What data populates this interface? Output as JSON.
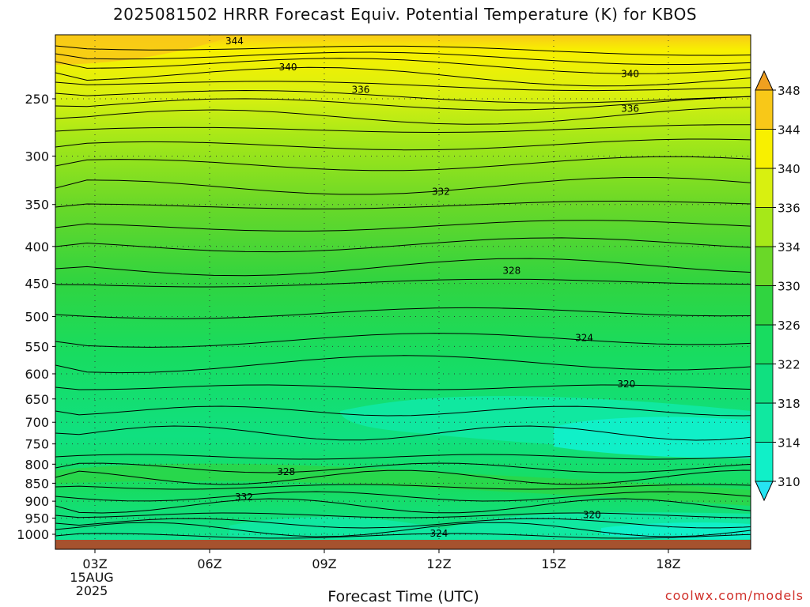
{
  "title": "2025081502 HRRR Forecast Equiv. Potential Temperature (K) for KBOS",
  "xlabel": "Forecast Time (UTC)",
  "credit": "coolwx.com/models",
  "chart_data": {
    "type": "heatmap",
    "title": "2025081502 HRRR Forecast Equiv. Potential Temperature (K) for KBOS",
    "xlabel": "Forecast Time (UTC)",
    "ylabel": "",
    "x_ticks": [
      {
        "label": "03Z",
        "sub": [
          "15AUG",
          "2025"
        ],
        "hour": 3
      },
      {
        "label": "06Z",
        "hour": 6
      },
      {
        "label": "09Z",
        "hour": 9
      },
      {
        "label": "12Z",
        "hour": 12
      },
      {
        "label": "15Z",
        "hour": 15
      },
      {
        "label": "18Z",
        "hour": 18
      }
    ],
    "x_range_hours": [
      2,
      20
    ],
    "y_ticks": [
      250,
      300,
      350,
      400,
      450,
      500,
      550,
      600,
      650,
      700,
      750,
      800,
      850,
      900,
      950,
      1000
    ],
    "y_range_hPa": [
      200,
      1013
    ],
    "y_scale": "log",
    "grid": true,
    "colorbar": {
      "levels": [
        310,
        314,
        318,
        322,
        326,
        330,
        334,
        336,
        340,
        344,
        348
      ],
      "colors": [
        "#26e4f2",
        "#10f0c8",
        "#10e8a0",
        "#10e080",
        "#18dc60",
        "#30d440",
        "#6ad828",
        "#a6e818",
        "#d8f010",
        "#f8f000",
        "#f8c818",
        "#f0a020"
      ],
      "extend": "both"
    },
    "contour_labels": [
      {
        "text": "344",
        "hour": 6.65,
        "p": 208
      },
      {
        "text": "340",
        "hour": 8.05,
        "p": 226
      },
      {
        "text": "340",
        "hour": 17.0,
        "p": 231
      },
      {
        "text": "336",
        "hour": 9.95,
        "p": 243
      },
      {
        "text": "336",
        "hour": 17.0,
        "p": 258
      },
      {
        "text": "332",
        "hour": 12.05,
        "p": 336
      },
      {
        "text": "328",
        "hour": 13.9,
        "p": 432
      },
      {
        "text": "324",
        "hour": 15.8,
        "p": 535
      },
      {
        "text": "320",
        "hour": 16.9,
        "p": 620
      },
      {
        "text": "328",
        "hour": 8.0,
        "p": 820
      },
      {
        "text": "332",
        "hour": 6.9,
        "p": 888
      },
      {
        "text": "320",
        "hour": 16.0,
        "p": 940
      },
      {
        "text": "324",
        "hour": 12.0,
        "p": 997
      }
    ],
    "surface": {
      "color": "#a6522e",
      "p_top": 1000
    }
  }
}
